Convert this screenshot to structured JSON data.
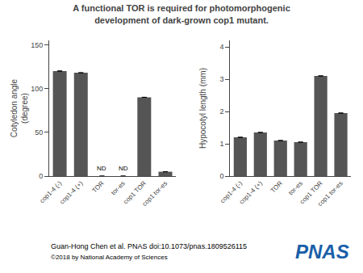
{
  "chart_data": [
    {
      "type": "bar",
      "title": "A functional TOR is required for photomorphogenic development of dark-grown cop1 mutant.",
      "ylabel": "Cotyledon angle\n(degree)",
      "categories": [
        "cop1-4 (-)",
        "cop1-4 (+)",
        "TOR",
        "tor-es",
        "cop1 TOR",
        "cop1 tor-es"
      ],
      "values": [
        120,
        118,
        0,
        0,
        90,
        5
      ],
      "errors": [
        0,
        0,
        0,
        0,
        0,
        0
      ],
      "color": "#555555",
      "ylim": [
        0,
        155
      ],
      "yticks": [
        0,
        50,
        100,
        150
      ],
      "grid": false,
      "annotations": [
        {
          "text": "ND",
          "category": "TOR"
        },
        {
          "text": "ND",
          "category": "tor-es"
        }
      ]
    },
    {
      "type": "bar",
      "ylabel": "Hypocotyl length (mm)",
      "categories": [
        "cop1-4 (-)",
        "cop1-4 (+)",
        "TOR",
        "tor-es",
        "cop1 TOR",
        "cop1 tor-es"
      ],
      "values": [
        1.2,
        1.35,
        1.1,
        1.05,
        3.1,
        1.95
      ],
      "errors": [
        0,
        0,
        0,
        0,
        0,
        0
      ],
      "color": "#555555",
      "ylim": [
        0,
        4.2
      ],
      "yticks": [
        0,
        1,
        2,
        3,
        4
      ],
      "grid": false,
      "annotations": [
        {
          "text": "Guan-Hong Chen et al. PNAS doi:10.1073/pnas.1809526115"
        },
        {
          "text": "©2018 by National Academy of Sciences"
        },
        {
          "text": "PNAS",
          "color": "#1a5fa8"
        }
      ]
    }
  ]
}
